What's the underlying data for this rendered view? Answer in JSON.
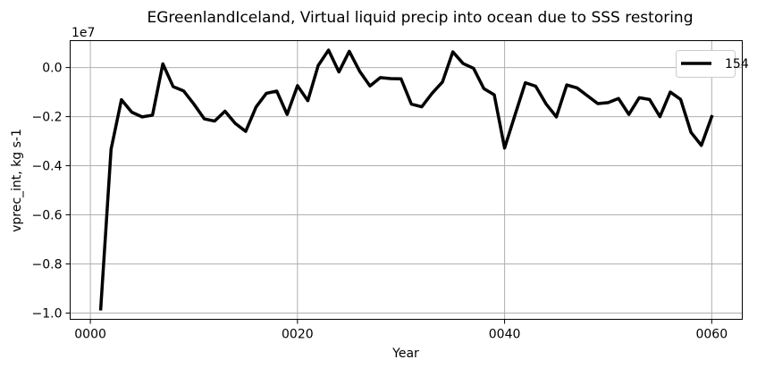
{
  "chart_data": {
    "type": "line",
    "title": "EGreenlandIceland, Virtual liquid precip into ocean due to SSS restoring",
    "xlabel": "Year",
    "ylabel": "vprec_int, kg s-1",
    "y_scale_label": "1e7",
    "xlim": [
      -1.95,
      62.95
    ],
    "ylim": [
      -1.0255,
      0.1095
    ],
    "x_ticks": [
      0,
      20,
      40,
      60
    ],
    "x_tick_labels": [
      "0000",
      "0020",
      "0040",
      "0060"
    ],
    "y_ticks": [
      -1.0,
      -0.8,
      -0.6,
      -0.4,
      -0.2,
      0.0
    ],
    "y_tick_labels": [
      "−1.0",
      "−0.8",
      "−0.6",
      "−0.4",
      "−0.2",
      "0.0"
    ],
    "grid": true,
    "legend_position": "top-right",
    "series": [
      {
        "name": "154",
        "color": "#000000",
        "x": [
          1,
          2,
          3,
          4,
          5,
          6,
          7,
          8,
          9,
          10,
          11,
          12,
          13,
          14,
          15,
          16,
          17,
          18,
          19,
          20,
          21,
          22,
          23,
          24,
          25,
          26,
          27,
          28,
          29,
          30,
          31,
          32,
          33,
          34,
          35,
          36,
          37,
          38,
          39,
          40,
          41,
          42,
          43,
          44,
          45,
          46,
          47,
          48,
          49,
          50,
          51,
          52,
          53,
          54,
          55,
          56,
          57,
          58,
          59,
          60
        ],
        "values": [
          -0.983,
          -0.333,
          -0.131,
          -0.182,
          -0.201,
          -0.194,
          0.015,
          -0.078,
          -0.095,
          -0.149,
          -0.209,
          -0.218,
          -0.178,
          -0.228,
          -0.26,
          -0.161,
          -0.105,
          -0.096,
          -0.191,
          -0.074,
          -0.135,
          0.008,
          0.071,
          -0.018,
          0.066,
          -0.015,
          -0.075,
          -0.041,
          -0.045,
          -0.046,
          -0.149,
          -0.16,
          -0.105,
          -0.059,
          0.064,
          0.016,
          -0.003,
          -0.086,
          -0.111,
          -0.328,
          -0.194,
          -0.062,
          -0.076,
          -0.148,
          -0.201,
          -0.071,
          -0.083,
          -0.115,
          -0.147,
          -0.143,
          -0.126,
          -0.191,
          -0.123,
          -0.13,
          -0.2,
          -0.1,
          -0.13,
          -0.264,
          -0.317,
          -0.2
        ]
      }
    ]
  }
}
